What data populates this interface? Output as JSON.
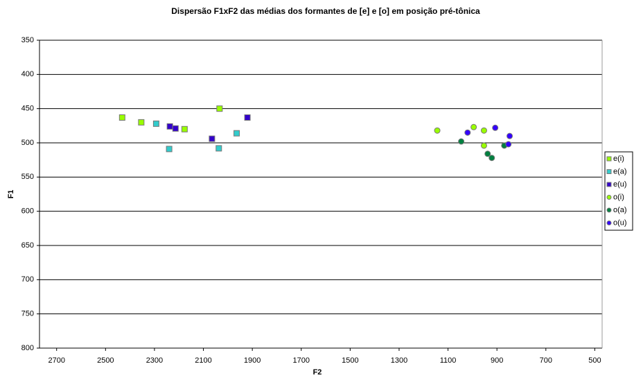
{
  "chart_data": {
    "type": "scatter",
    "title": "Dispersão F1xF2 das médias dos formantes de [e] e [o] em posição pré-tônica",
    "x_label": "F2",
    "y_label": "F1",
    "xlim": [
      2770,
      470
    ],
    "ylim": [
      800,
      350
    ],
    "x_reversed": true,
    "y_reversed": true,
    "xticks": [
      2700,
      2500,
      2300,
      2100,
      1900,
      1700,
      1500,
      1300,
      1100,
      900,
      700,
      500
    ],
    "yticks": [
      350,
      400,
      450,
      500,
      550,
      600,
      650,
      700,
      750,
      800
    ],
    "grid": true,
    "legend": "right",
    "series": [
      {
        "name": "e(i)",
        "color": "#99ff00",
        "marker": "square",
        "x": [
          2432,
          2354,
          2177,
          2034
        ],
        "values": [
          463,
          470,
          480,
          450
        ]
      },
      {
        "name": "e(a)",
        "color": "#33cccc",
        "marker": "square",
        "x": [
          2293,
          2240,
          2037,
          1964
        ],
        "values": [
          472,
          509,
          508,
          486
        ]
      },
      {
        "name": "e(u)",
        "color": "#3300cc",
        "marker": "square",
        "x": [
          2237,
          2214,
          2065,
          1920
        ],
        "values": [
          476,
          479,
          494,
          463
        ]
      },
      {
        "name": "o(i)",
        "color": "#99ff00",
        "marker": "circle",
        "x": [
          1144,
          995,
          953,
          953
        ],
        "values": [
          482,
          477,
          482,
          504
        ]
      },
      {
        "name": "o(a)",
        "color": "#008040",
        "marker": "circle",
        "x": [
          1046,
          938,
          921,
          870
        ],
        "values": [
          498,
          516,
          522,
          504
        ]
      },
      {
        "name": "o(u)",
        "color": "#3300ff",
        "marker": "circle",
        "x": [
          1020,
          907,
          853,
          848
        ],
        "values": [
          485,
          478,
          502,
          490
        ]
      }
    ]
  }
}
